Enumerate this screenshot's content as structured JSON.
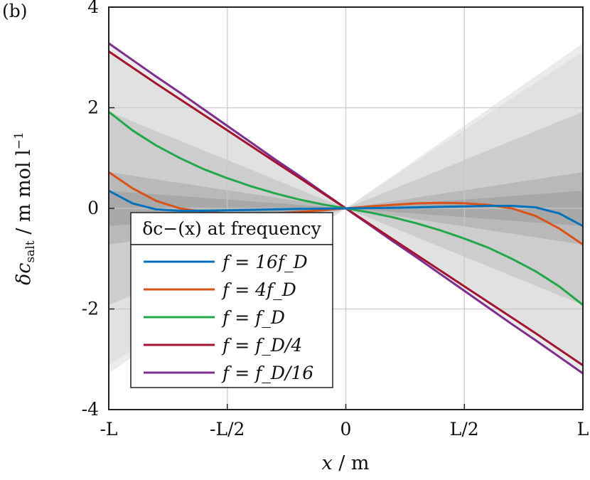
{
  "panel_label": "(b)",
  "chart_data": {
    "type": "line",
    "xlabel": "x / m",
    "ylabel": "δc_salt / m mol l^-1",
    "xlim": [
      -1,
      1
    ],
    "ylim": [
      -4,
      4
    ],
    "x_tick_values": [
      -1,
      -0.5,
      0,
      0.5,
      1
    ],
    "x_tick_labels": [
      "-L",
      "-L/2",
      "0",
      "L/2",
      "L"
    ],
    "y_tick_values": [
      -4,
      -2,
      0,
      2,
      4
    ],
    "y_tick_labels": [
      "-4",
      "-2",
      "0",
      "2",
      "4"
    ],
    "grid": true,
    "legend": {
      "title": "δc−(x) at frequency",
      "position": "lower-left"
    },
    "x": [
      -1,
      -0.9,
      -0.8,
      -0.7,
      -0.6,
      -0.5,
      -0.4,
      -0.3,
      -0.2,
      -0.1,
      0,
      0.1,
      0.2,
      0.3,
      0.4,
      0.5,
      0.6,
      0.7,
      0.8,
      0.9,
      1
    ],
    "series": [
      {
        "name": "f = 16f_D",
        "color": "#0072BD",
        "values": [
          0.35,
          0.1,
          -0.02,
          -0.05,
          -0.05,
          -0.04,
          -0.03,
          -0.02,
          -0.01,
          -0.005,
          0,
          0.005,
          0.01,
          0.02,
          0.03,
          0.04,
          0.05,
          0.05,
          0.02,
          -0.1,
          -0.35
        ]
      },
      {
        "name": "f = 4f_D",
        "color": "#D95319",
        "values": [
          0.72,
          0.4,
          0.15,
          0.0,
          -0.07,
          -0.1,
          -0.11,
          -0.1,
          -0.07,
          -0.04,
          0,
          0.04,
          0.07,
          0.1,
          0.11,
          0.1,
          0.07,
          0.0,
          -0.15,
          -0.4,
          -0.72
        ]
      },
      {
        "name": "f = f_D",
        "color": "#22A84A",
        "values": [
          1.92,
          1.55,
          1.25,
          1.0,
          0.78,
          0.6,
          0.44,
          0.3,
          0.18,
          0.08,
          0,
          -0.08,
          -0.18,
          -0.3,
          -0.44,
          -0.6,
          -0.78,
          -1.0,
          -1.25,
          -1.55,
          -1.92
        ]
      },
      {
        "name": "f = f_D/4",
        "color": "#A2142F",
        "values": [
          3.12,
          2.8,
          2.48,
          2.17,
          1.86,
          1.55,
          1.24,
          0.93,
          0.62,
          0.31,
          0,
          -0.31,
          -0.62,
          -0.93,
          -1.24,
          -1.55,
          -1.86,
          -2.17,
          -2.48,
          -2.8,
          -3.12
        ]
      },
      {
        "name": "f = f_D/16",
        "color": "#7E2F8E",
        "values": [
          3.28,
          2.95,
          2.62,
          2.3,
          1.97,
          1.64,
          1.31,
          0.98,
          0.66,
          0.33,
          0,
          -0.33,
          -0.66,
          -0.98,
          -1.31,
          -1.64,
          -1.97,
          -2.3,
          -2.62,
          -2.95,
          -3.28
        ]
      }
    ],
    "envelopes": [
      {
        "name": "envelope-f-D-16",
        "color": "#ebebeb",
        "half_width_at_L": 3.28
      },
      {
        "name": "envelope-f-D-4",
        "color": "#e1e1e1",
        "half_width_at_L": 3.12
      },
      {
        "name": "envelope-f-D",
        "color": "#cdcdcd",
        "half_width_at_L": 1.92
      },
      {
        "name": "envelope-4f-D",
        "color": "#b9b9b9",
        "half_width_at_L": 0.72
      },
      {
        "name": "envelope-16f-D",
        "color": "#a8a8a8",
        "half_width_at_L": 0.35
      }
    ]
  }
}
